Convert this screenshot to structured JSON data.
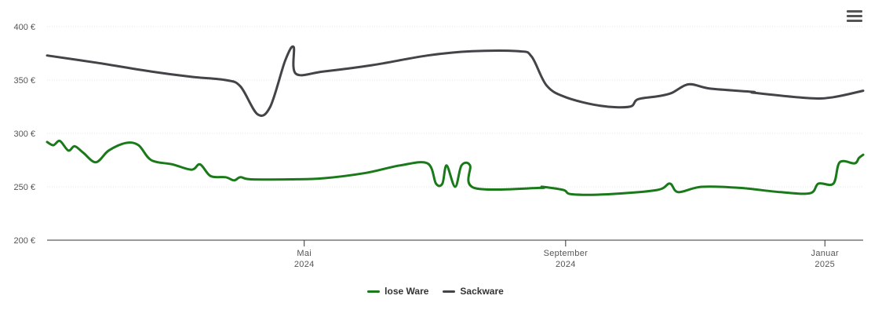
{
  "chart_data": {
    "type": "line",
    "title": "",
    "xlabel": "",
    "ylabel": "",
    "ylim": [
      200,
      400
    ],
    "xlim": [
      "2024-01-01",
      "2025-01-19"
    ],
    "y_ticks": [
      {
        "value": 200,
        "label": "200 €"
      },
      {
        "value": 250,
        "label": "250 €"
      },
      {
        "value": 300,
        "label": "300 €"
      },
      {
        "value": 350,
        "label": "350 €"
      },
      {
        "value": 400,
        "label": "400 €"
      }
    ],
    "x_ticks": [
      {
        "date": "2024-05-01",
        "line1": "Mai",
        "line2": "2024"
      },
      {
        "date": "2024-09-01",
        "line1": "September",
        "line2": "2024"
      },
      {
        "date": "2025-01-01",
        "line1": "Januar",
        "line2": "2025"
      }
    ],
    "grid": true,
    "legend_position": "bottom-center",
    "series": [
      {
        "name": "lose Ware",
        "color": "#1a7a1a",
        "points": [
          [
            "2024-01-01",
            292
          ],
          [
            "2024-01-04",
            289
          ],
          [
            "2024-01-07",
            293
          ],
          [
            "2024-01-11",
            284
          ],
          [
            "2024-01-14",
            288
          ],
          [
            "2024-01-18",
            282
          ],
          [
            "2024-01-24",
            273
          ],
          [
            "2024-01-30",
            284
          ],
          [
            "2024-02-07",
            291
          ],
          [
            "2024-02-13",
            289
          ],
          [
            "2024-02-19",
            275
          ],
          [
            "2024-02-29",
            271
          ],
          [
            "2024-03-09",
            266
          ],
          [
            "2024-03-13",
            271
          ],
          [
            "2024-03-18",
            260
          ],
          [
            "2024-03-25",
            259
          ],
          [
            "2024-03-29",
            256
          ],
          [
            "2024-04-01",
            259
          ],
          [
            "2024-04-06",
            257
          ],
          [
            "2024-04-25",
            257
          ],
          [
            "2024-05-10",
            258
          ],
          [
            "2024-05-30",
            263
          ],
          [
            "2024-06-15",
            270
          ],
          [
            "2024-06-28",
            272
          ],
          [
            "2024-07-02",
            253
          ],
          [
            "2024-07-05",
            253
          ],
          [
            "2024-07-07",
            270
          ],
          [
            "2024-07-11",
            250
          ],
          [
            "2024-07-14",
            270
          ],
          [
            "2024-07-18",
            270
          ],
          [
            "2024-07-20",
            249
          ],
          [
            "2024-08-20",
            249
          ],
          [
            "2024-08-21",
            250
          ],
          [
            "2024-08-31",
            247
          ],
          [
            "2024-09-04",
            243
          ],
          [
            "2024-09-21",
            243
          ],
          [
            "2024-10-14",
            247
          ],
          [
            "2024-10-20",
            253
          ],
          [
            "2024-10-24",
            245
          ],
          [
            "2024-11-04",
            250
          ],
          [
            "2024-11-22",
            249
          ],
          [
            "2024-12-11",
            245
          ],
          [
            "2024-12-25",
            244
          ],
          [
            "2024-12-29",
            253
          ],
          [
            "2025-01-05",
            253
          ],
          [
            "2025-01-08",
            273
          ],
          [
            "2025-01-15",
            272
          ],
          [
            "2025-01-17",
            277
          ],
          [
            "2025-01-19",
            280
          ]
        ]
      },
      {
        "name": "Sackware",
        "color": "#434348",
        "points": [
          [
            "2024-01-01",
            373
          ],
          [
            "2024-01-25",
            366
          ],
          [
            "2024-02-19",
            358
          ],
          [
            "2024-03-09",
            353
          ],
          [
            "2024-03-25",
            350
          ],
          [
            "2024-04-01",
            344
          ],
          [
            "2024-04-09",
            318
          ],
          [
            "2024-04-15",
            325
          ],
          [
            "2024-04-22",
            368
          ],
          [
            "2024-04-26",
            381
          ],
          [
            "2024-04-27",
            356
          ],
          [
            "2024-05-10",
            358
          ],
          [
            "2024-06-02",
            364
          ],
          [
            "2024-06-28",
            373
          ],
          [
            "2024-07-19",
            377
          ],
          [
            "2024-08-10",
            377
          ],
          [
            "2024-08-16",
            372
          ],
          [
            "2024-08-23",
            345
          ],
          [
            "2024-09-01",
            334
          ],
          [
            "2024-09-17",
            326
          ],
          [
            "2024-10-01",
            325
          ],
          [
            "2024-10-05",
            332
          ],
          [
            "2024-10-15",
            335
          ],
          [
            "2024-10-21",
            338
          ],
          [
            "2024-10-29",
            346
          ],
          [
            "2024-11-08",
            342
          ],
          [
            "2024-11-28",
            339
          ],
          [
            "2024-11-29",
            338
          ],
          [
            "2024-12-25",
            333
          ],
          [
            "2025-01-05",
            334
          ],
          [
            "2025-01-19",
            340
          ]
        ]
      }
    ]
  },
  "menu": {
    "icon": "hamburger-menu-icon"
  }
}
